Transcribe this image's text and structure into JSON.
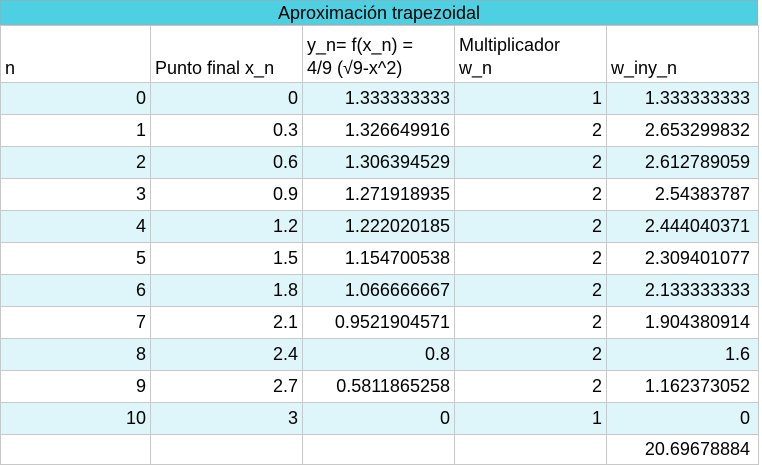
{
  "title": "Aproximación trapezoidal",
  "headers": {
    "n": "n",
    "x": "Punto final x_n",
    "y_line1": "y_n= f(x_n) =",
    "y_line2": "4/9 (√9-x^2)",
    "w_line1": "Multiplicador",
    "w_line2": "w_n",
    "wy": "w_iny_n"
  },
  "rows": [
    {
      "n": "0",
      "x": "0",
      "y": "1.333333333",
      "w": "1",
      "wy": "1.333333333"
    },
    {
      "n": "1",
      "x": "0.3",
      "y": "1.326649916",
      "w": "2",
      "wy": "2.653299832"
    },
    {
      "n": "2",
      "x": "0.6",
      "y": "1.306394529",
      "w": "2",
      "wy": "2.612789059"
    },
    {
      "n": "3",
      "x": "0.9",
      "y": "1.271918935",
      "w": "2",
      "wy": "2.54383787"
    },
    {
      "n": "4",
      "x": "1.2",
      "y": "1.222020185",
      "w": "2",
      "wy": "2.444040371"
    },
    {
      "n": "5",
      "x": "1.5",
      "y": "1.154700538",
      "w": "2",
      "wy": "2.309401077"
    },
    {
      "n": "6",
      "x": "1.8",
      "y": "1.066666667",
      "w": "2",
      "wy": "2.133333333"
    },
    {
      "n": "7",
      "x": "2.1",
      "y": "0.9521904571",
      "w": "2",
      "wy": "1.904380914"
    },
    {
      "n": "8",
      "x": "2.4",
      "y": "0.8",
      "w": "2",
      "wy": "1.6"
    },
    {
      "n": "9",
      "x": "2.7",
      "y": "0.5811865258",
      "w": "2",
      "wy": "1.162373052"
    },
    {
      "n": "10",
      "x": "3",
      "y": "0",
      "w": "1",
      "wy": "0"
    }
  ],
  "total": "20.69678884",
  "colors": {
    "title_bg": "#4dd0e1",
    "row_shade": "#def6f9"
  }
}
